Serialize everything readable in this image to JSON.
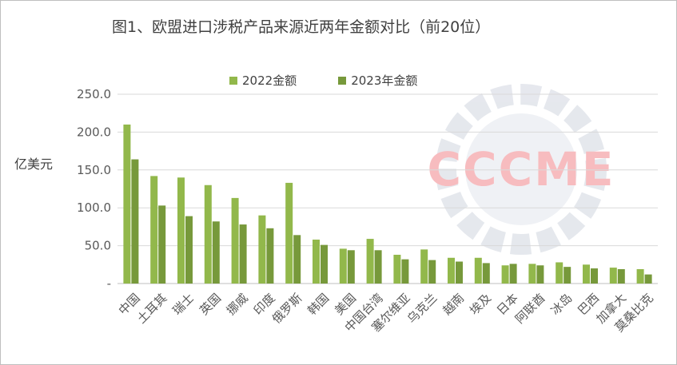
{
  "chart_data": {
    "type": "bar",
    "title": "图1、欧盟进口涉税产品来源近两年金额对比（前20位）",
    "ylabel": "亿美元",
    "ylim": [
      0,
      250
    ],
    "yticks": [
      "-",
      "50.0",
      "100.0",
      "150.0",
      "200.0",
      "250.0"
    ],
    "grid": true,
    "legend_position": "top",
    "categories": [
      "中国",
      "土耳其",
      "瑞士",
      "英国",
      "挪威",
      "印度",
      "俄罗斯",
      "韩国",
      "美国",
      "中国台湾",
      "塞尔维亚",
      "乌克兰",
      "越南",
      "埃及",
      "日本",
      "阿联酋",
      "冰岛",
      "巴西",
      "加拿大",
      "莫桑比克"
    ],
    "series": [
      {
        "name": "2022金额",
        "color": "#92b84b",
        "values": [
          210,
          142,
          140,
          130,
          113,
          90,
          133,
          58,
          46,
          59,
          38,
          45,
          34,
          34,
          24,
          26,
          28,
          25,
          21,
          19
        ]
      },
      {
        "name": "2023年金额",
        "color": "#77993b",
        "values": [
          164,
          103,
          89,
          82,
          78,
          73,
          64,
          51,
          44,
          44,
          32,
          31,
          29,
          27,
          26,
          24,
          22,
          20,
          19,
          12
        ]
      }
    ]
  },
  "watermark": {
    "text": "CCCME"
  }
}
